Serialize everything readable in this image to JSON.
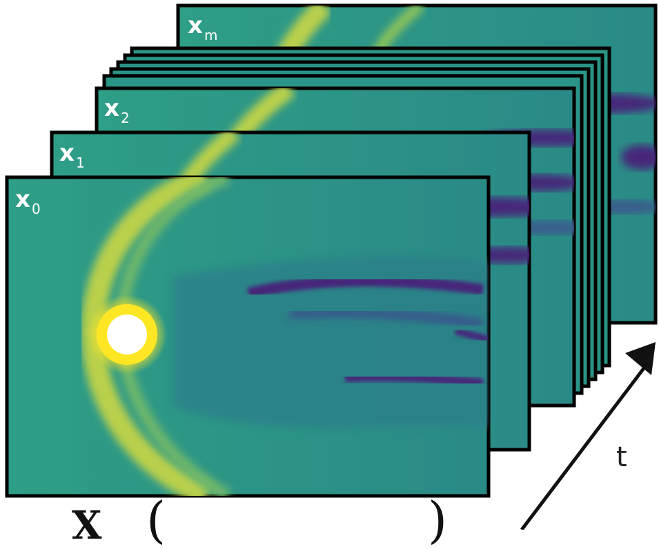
{
  "frames": [
    {
      "id": "m",
      "var": "x",
      "sub": "m"
    },
    {
      "id": "2",
      "var": "x",
      "sub": "2"
    },
    {
      "id": "1",
      "var": "x",
      "sub": "1"
    },
    {
      "id": "0",
      "var": "x",
      "sub": "0"
    }
  ],
  "time_axis_label": "t",
  "caption": {
    "symbol": "X",
    "open_paren": "(",
    "close_paren": ")"
  },
  "colors": {
    "background_teal": "#2f9e86",
    "bow_shock_yellow": "#b9d04b",
    "hot_yellow": "#fde725",
    "wake_purple": "#46287a",
    "frame_border": "#000000",
    "arrow": "#111111"
  }
}
